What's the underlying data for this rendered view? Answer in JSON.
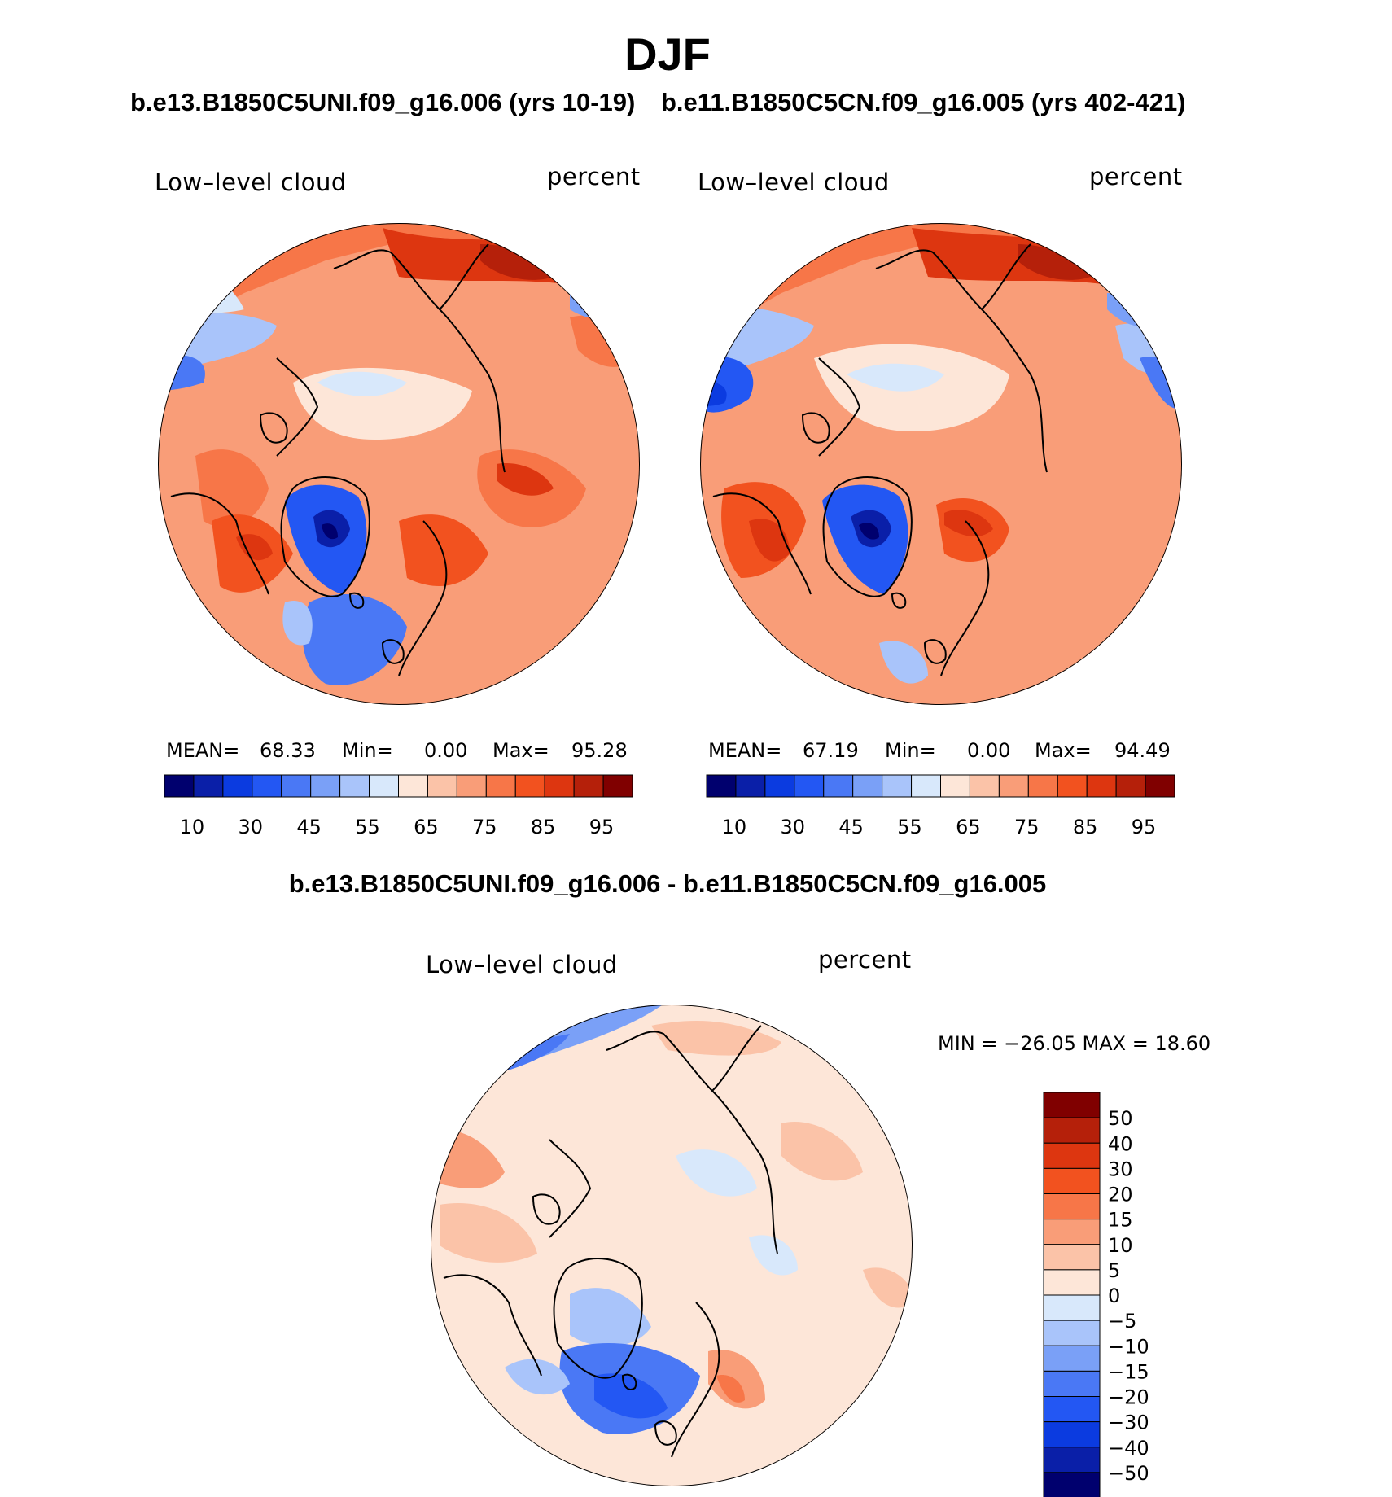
{
  "season": "DJF",
  "panels": [
    {
      "experiment": "b.e13.B1850C5UNI.f09_g16.006 (yrs 10-19)",
      "variable": "Low–level cloud",
      "units": "percent",
      "stats": {
        "mean_label": "MEAN=",
        "mean": "68.33",
        "min_label": "Min=",
        "min": "0.00",
        "max_label": "Max=",
        "max": "95.28"
      }
    },
    {
      "experiment": "b.e11.B1850C5CN.f09_g16.005 (yrs 402-421)",
      "variable": "Low–level cloud",
      "units": "percent",
      "stats": {
        "mean_label": "MEAN=",
        "mean": "67.19",
        "min_label": "Min=",
        "min": "0.00",
        "max_label": "Max=",
        "max": "94.49"
      }
    }
  ],
  "difference": {
    "title": "b.e13.B1850C5UNI.f09_g16.006 - b.e11.B1850C5CN.f09_g16.005",
    "variable": "Low–level cloud",
    "units": "percent",
    "min_max_text": "MIN = −26.05 MAX =   18.60"
  },
  "chart_data": [
    {
      "type": "heatmap",
      "projection": "north polar stereographic",
      "title": "b.e13.B1850C5UNI.f09_g16.006 (yrs 10-19)",
      "variable": "Low-level cloud",
      "units": "percent",
      "mean": 68.33,
      "min": 0.0,
      "max": 95.28,
      "colorbar_ticks": [
        "10",
        "30",
        "45",
        "55",
        "65",
        "75",
        "85",
        "95"
      ],
      "contour_levels": [
        10,
        20,
        30,
        40,
        45,
        50,
        55,
        60,
        65,
        70,
        75,
        80,
        85,
        90,
        95
      ]
    },
    {
      "type": "heatmap",
      "projection": "north polar stereographic",
      "title": "b.e11.B1850C5CN.f09_g16.005 (yrs 402-421)",
      "variable": "Low-level cloud",
      "units": "percent",
      "mean": 67.19,
      "min": 0.0,
      "max": 94.49,
      "colorbar_ticks": [
        "10",
        "30",
        "45",
        "55",
        "65",
        "75",
        "85",
        "95"
      ],
      "contour_levels": [
        10,
        20,
        30,
        40,
        45,
        50,
        55,
        60,
        65,
        70,
        75,
        80,
        85,
        90,
        95
      ]
    },
    {
      "type": "heatmap",
      "projection": "north polar stereographic",
      "title": "b.e13.B1850C5UNI.f09_g16.006 - b.e11.B1850C5CN.f09_g16.005",
      "variable": "Low-level cloud",
      "units": "percent",
      "min": -26.05,
      "max": 18.6,
      "colorbar_ticks": [
        "50",
        "40",
        "30",
        "20",
        "15",
        "10",
        "5",
        "0",
        "−5",
        "−10",
        "−15",
        "−20",
        "−30",
        "−40",
        "−50"
      ]
    }
  ],
  "colors": {
    "abs_scale": [
      "#00006e",
      "#0a1fa8",
      "#0b3be0",
      "#2357f3",
      "#4a78f5",
      "#7aa0f7",
      "#a9c4fa",
      "#d8e8fb",
      "#fde6d8",
      "#fbc3a8",
      "#f99d78",
      "#f77648",
      "#f2521f",
      "#dd3610",
      "#b5200a",
      "#800000"
    ],
    "diff_scale": [
      "#00006e",
      "#0a1fa8",
      "#0b3be0",
      "#2357f3",
      "#4a78f5",
      "#7aa0f7",
      "#a9c4fa",
      "#d8e8fb",
      "#fde6d8",
      "#fbc3a8",
      "#f99d78",
      "#f77648",
      "#f2521f",
      "#dd3610",
      "#b5200a",
      "#800000"
    ]
  }
}
